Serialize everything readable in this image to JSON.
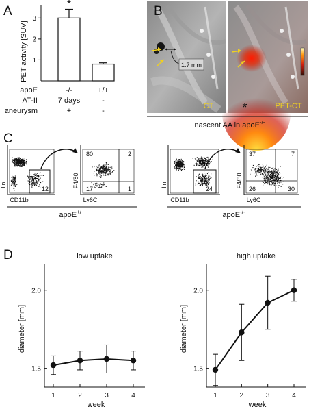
{
  "panels": {
    "A": "A",
    "B": "B",
    "C": "C",
    "D": "D"
  },
  "panelA": {
    "ylabel": "PET activity [SUV]",
    "yticks": [
      "1",
      "2",
      "3"
    ],
    "significance": "*",
    "row_labels": [
      "apoE",
      "AT-II",
      "aneurysm"
    ],
    "col1": [
      "-/-",
      "7 days",
      "+"
    ],
    "col2": [
      "+/+",
      "-",
      "-"
    ]
  },
  "panelB": {
    "measure": "1.7 mm",
    "left_label": "CT",
    "right_label": "PET-CT",
    "star": "*",
    "caption": "nascent AA in apoE",
    "caption_sup": "-/-"
  },
  "panelC": {
    "group_left": "apoE",
    "group_left_sup": "+/+",
    "group_right": "apoE",
    "group_right_sup": "-/-",
    "gate_left": "12",
    "gate_right": "24",
    "axis_lin": "lin",
    "axis_cd11b": "CD11b",
    "axis_f480": "F4/80",
    "axis_ly6c": "Ly6C",
    "quad_left": [
      "80",
      "2",
      "17",
      "1"
    ],
    "quad_right": [
      "37",
      "7",
      "26",
      "30"
    ]
  },
  "chart_data": [
    {
      "type": "bar",
      "categories": [
        "apoE -/-",
        "apoE +/+"
      ],
      "values": [
        3.0,
        0.8
      ],
      "errors": [
        0.42,
        0.06
      ],
      "ylabel": "PET activity [SUV]",
      "ylim": [
        0,
        3.6
      ],
      "yticks": [
        1,
        2,
        3
      ]
    },
    {
      "type": "line",
      "title": "low uptake",
      "xlabel": "week",
      "ylabel": "diameter [mm]",
      "x": [
        1,
        2,
        3,
        4
      ],
      "y": [
        1.52,
        1.55,
        1.56,
        1.55
      ],
      "errors": [
        0.06,
        0.06,
        0.09,
        0.06
      ],
      "ylim": [
        1.38,
        2.17
      ],
      "yticks": [
        "1.5",
        "2.0"
      ]
    },
    {
      "type": "line",
      "title": "high uptake",
      "xlabel": "week",
      "ylabel": "diameter [mm]",
      "x": [
        1,
        2,
        3,
        4
      ],
      "y": [
        1.49,
        1.73,
        1.92,
        2.0
      ],
      "errors": [
        0.1,
        0.18,
        0.17,
        0.07
      ],
      "ylim": [
        1.38,
        2.17
      ],
      "yticks": [
        "1.5",
        "2.0"
      ]
    }
  ]
}
